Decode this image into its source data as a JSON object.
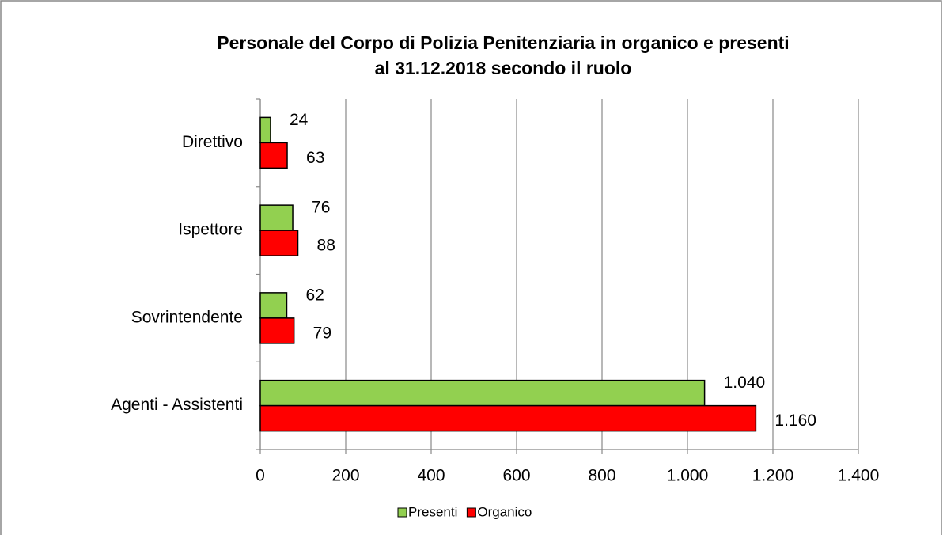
{
  "chart_data": {
    "type": "bar",
    "orientation": "horizontal",
    "title": [
      "Personale del Corpo di Polizia Penitenziaria in organico e presenti",
      "al 31.12.2018 secondo il ruolo"
    ],
    "categories": [
      "Direttivo",
      "Ispettore",
      "Sovrintendente",
      "Agenti - Assistenti"
    ],
    "series": [
      {
        "name": "Presenti",
        "color": "#92d050",
        "values": [
          24,
          76,
          62,
          1040
        ],
        "value_labels": [
          "24",
          "76",
          "62",
          "1.040"
        ]
      },
      {
        "name": "Organico",
        "color": "#ff0000",
        "values": [
          63,
          88,
          79,
          1160
        ],
        "value_labels": [
          "63",
          "88",
          "79",
          "1.160"
        ]
      }
    ],
    "xlim": [
      0,
      1400
    ],
    "xticks": [
      0,
      200,
      400,
      600,
      800,
      {
        "value": 1000,
        "label": "1.000"
      },
      {
        "value": 1200,
        "label": "1.200"
      },
      {
        "value": 1400,
        "label": "1.400"
      }
    ],
    "grid": true,
    "legend": "bottom"
  }
}
